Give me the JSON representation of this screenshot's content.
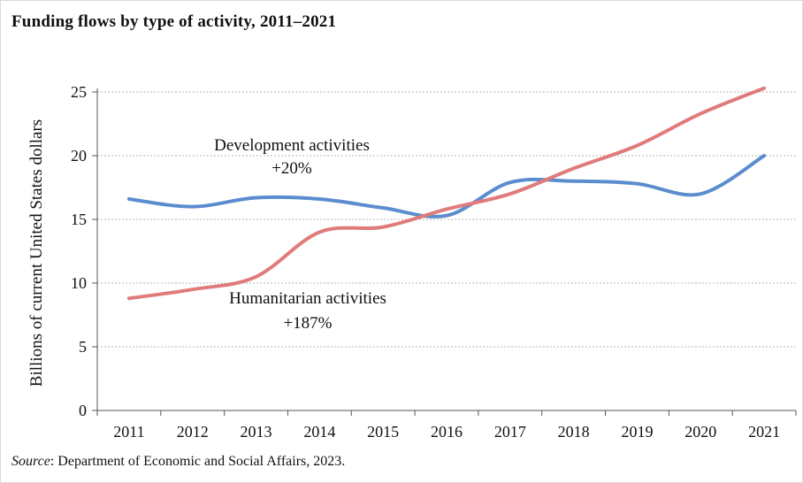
{
  "title": "Funding flows by type of activity, 2011–2021",
  "source_label": "Source",
  "source_text": ": Department of Economic and Social Affairs, 2023.",
  "chart_data": {
    "type": "line",
    "x": [
      "2011",
      "2012",
      "2013",
      "2014",
      "2015",
      "2016",
      "2017",
      "2018",
      "2019",
      "2020",
      "2021"
    ],
    "series": [
      {
        "name": "Development activities",
        "change": "+20%",
        "color": "#5b8ccf",
        "values": [
          16.6,
          16.0,
          16.7,
          16.6,
          15.9,
          15.3,
          17.9,
          18.0,
          17.8,
          17.0,
          20.0
        ]
      },
      {
        "name": "Humanitarian activities",
        "change": "+187%",
        "color": "#e07b7b",
        "values": [
          8.8,
          9.5,
          10.5,
          14.0,
          14.4,
          15.8,
          17.0,
          19.0,
          20.8,
          23.3,
          25.3
        ]
      }
    ],
    "ylabel": "Billions of current United States dollars",
    "xlabel": "",
    "ylim": [
      0,
      25
    ],
    "yticks": [
      "0",
      "5",
      "10",
      "15",
      "20",
      "25"
    ],
    "grid": "horizontal dotted",
    "legend": "inline annotations"
  }
}
